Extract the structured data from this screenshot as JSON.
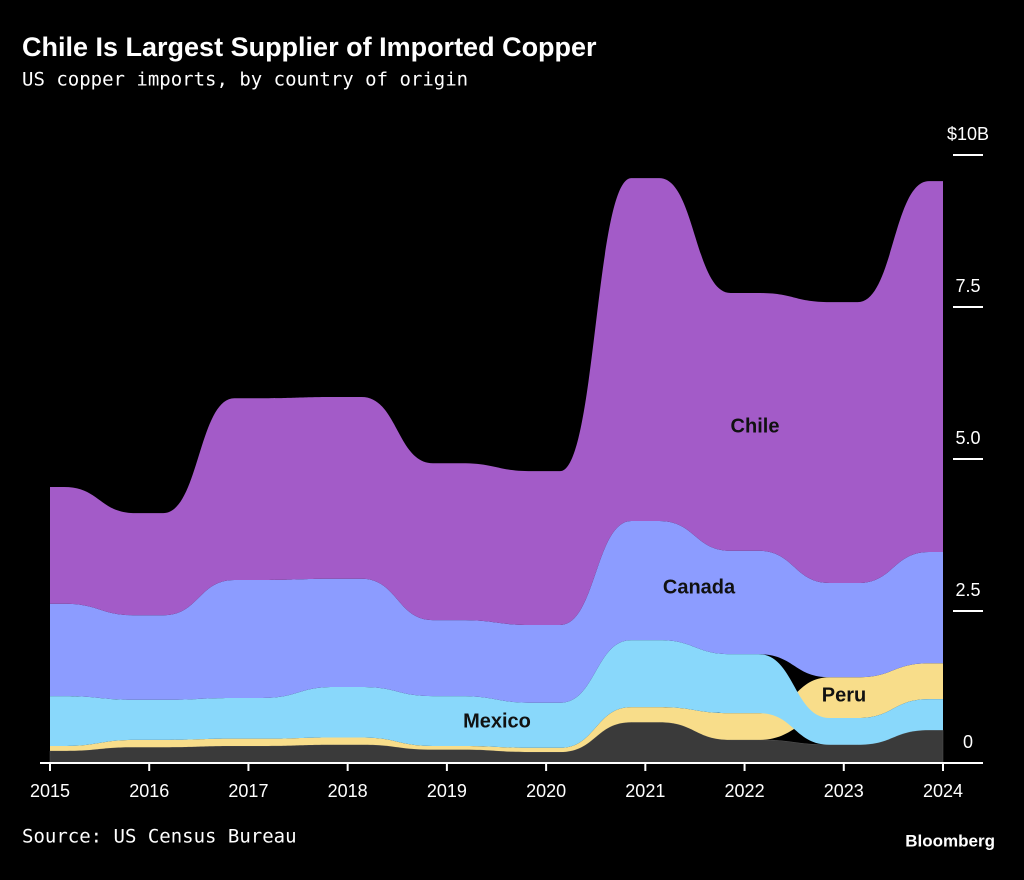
{
  "chart_data": {
    "type": "area",
    "title": "Chile Is Largest Supplier of Imported Copper",
    "subtitle": "US copper imports, by country of origin",
    "source": "Source: US Census Bureau",
    "brand": "Bloomberg",
    "stacked": true,
    "x": [
      2015,
      2016,
      2017,
      2018,
      2019,
      2020,
      2021,
      2022,
      2023,
      2024
    ],
    "xlim": [
      2015,
      2024
    ],
    "xticks": [
      2015,
      2016,
      2017,
      2018,
      2019,
      2020,
      2021,
      2022,
      2023,
      2024
    ],
    "ylim": [
      0,
      10
    ],
    "yticks": [
      0,
      2.5,
      {
        "value": 5,
        "label": "5.0"
      },
      7.5,
      {
        "value": 10,
        "label": "$10B"
      }
    ],
    "series": [
      {
        "color": "#3a3a3a",
        "values": [
          0.2,
          0.26,
          0.28,
          0.3,
          0.22,
          0.18,
          0.67,
          0.38,
          0.3,
          0.54
        ]
      },
      {
        "name": "Peru",
        "color": "#f8dd8a",
        "values": [
          0.08,
          0.12,
          0.12,
          0.12,
          0.06,
          0.07,
          0.25,
          0.44,
          0.67,
          0.59
        ]
      },
      {
        "name": "Mexico",
        "color": "#89d8fb",
        "values": [
          0.82,
          0.66,
          0.67,
          0.83,
          0.82,
          0.74,
          1.1,
          0.97,
          0.44,
          0.51
        ]
      },
      {
        "name": "Canada",
        "color": "#8c9cff",
        "values": [
          1.52,
          1.39,
          1.94,
          1.78,
          1.25,
          1.28,
          1.96,
          1.7,
          1.55,
          1.83
        ]
      },
      {
        "name": "Chile",
        "color": "#a35bc8",
        "values": [
          1.92,
          1.68,
          2.99,
          2.99,
          2.58,
          2.53,
          5.64,
          4.24,
          4.62,
          6.1
        ]
      }
    ]
  }
}
